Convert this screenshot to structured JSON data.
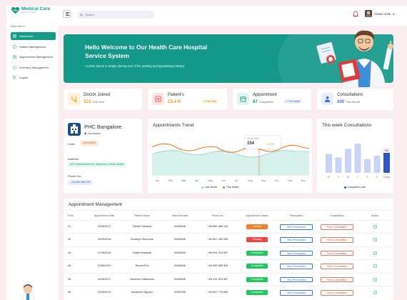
{
  "app": {
    "name": "Medical Care",
    "tagline": "HEALTH CARE"
  },
  "sidebar": {
    "menu_label": "Main Menu",
    "items": [
      {
        "label": "Dashboard",
        "icon": "dashboard-icon",
        "active": true
      },
      {
        "label": "Patient Management",
        "icon": "patient-icon"
      },
      {
        "label": "Appointment Management",
        "icon": "calendar-icon"
      },
      {
        "label": "Inventory Management",
        "icon": "inventory-icon"
      },
      {
        "label": "Logout",
        "icon": "logout-icon"
      }
    ]
  },
  "topbar": {
    "search_placeholder": "Search",
    "user_name": "Anson Jose"
  },
  "hero": {
    "title": "Hello Welcome to Our Health Care Hospital Service System",
    "text": "Lorem Ipsum is simply dummy text of the printing and typesetting industry."
  },
  "stats": [
    {
      "title": "Doctor Joined",
      "value": "323",
      "suffix": "This Year",
      "chip": ""
    },
    {
      "title": "Patient's",
      "value": "23.4 K",
      "suffix": "",
      "chip": "This Year"
    },
    {
      "title": "Appointment",
      "value": "87",
      "suffix": "Completed",
      "chip": "This Month"
    },
    {
      "title": "Consultations",
      "value": "200",
      "suffix": "This Month",
      "chip": "This Month"
    }
  ],
  "phc": {
    "name": "PHC  Bangalore",
    "location": "Karnataka",
    "code_label": "Code:",
    "code": "109453646",
    "address_label": "Address:",
    "address": "2972 Westheimer Rd. Santa Ana, Illinois 85486",
    "phone_label": "Phone No:",
    "phone": "+84 889 988 125"
  },
  "trend": {
    "title": "Appointments Trend",
    "tooltip_date": "25 Jul 2022",
    "tooltip_value": "154",
    "tooltip_change": "+3.4%",
    "legend_last": "Last Month",
    "legend_this": "This Month",
    "months": [
      "Jan",
      "Feb",
      "Mar",
      "Apr",
      "May",
      "Jun",
      "Jul",
      "Aug",
      "Sep",
      "Oct",
      "Nov",
      "Dec"
    ]
  },
  "weekly": {
    "title": "This week Consultations",
    "days": [
      "M",
      "T",
      "W",
      "T",
      "F",
      "S",
      "Today"
    ],
    "values": [
      0.55,
      0.45,
      0.7,
      0.85,
      0.4,
      0.5,
      0.62
    ],
    "tooltip": "154",
    "legend": "Completion rate"
  },
  "table": {
    "title": "Appointment Management",
    "headers": [
      "S.No",
      "Appointment Date",
      "Patient Name",
      "Token Number",
      "Phone No.",
      "Appointment Status",
      "Prescription",
      "Consultation",
      "Action"
    ],
    "rows": [
      {
        "sno": "01.",
        "date": "15/08/2017",
        "name": "Darrell Steward",
        "token": "i0946548",
        "phone": "+84 889 988 125",
        "status": "Arrived",
        "status_color": "#f07f2e"
      },
      {
        "sno": "02.",
        "date": "18/09/2016",
        "name": "Brooklyn Simmons",
        "token": "i0946548",
        "phone": "+84 667 435 265",
        "status": "Pending",
        "status_color": "#ef4444"
      },
      {
        "sno": "03.",
        "date": "07/05/2016",
        "name": "Ralph Edwards",
        "token": "i0946548",
        "phone": "+84 691 213 567",
        "status": "Completed",
        "status_color": "#22c55e"
      },
      {
        "sno": "04.",
        "date": "12/06/2020",
        "name": "Robert Fox",
        "token": "i0946548",
        "phone": "+84 555 655 999",
        "status": "Completed",
        "status_color": "#22c55e"
      },
      {
        "sno": "05.",
        "date": "15/08/2017",
        "name": "Cameron Williamson",
        "token": "i0946538",
        "phone": "+84 416 323 567",
        "status": "Completed",
        "status_color": "#22c55e"
      },
      {
        "sno": "06.",
        "date": "16/08/2013",
        "name": "Savannah Nguyen",
        "token": "i0946538",
        "phone": "+84 667 778 889",
        "status": "Completed",
        "status_color": "#22c55e"
      }
    ],
    "prescription_label": "View Prescription",
    "consultation_label": "Push Consultation"
  },
  "colors": {
    "brand": "#159b8a",
    "accent_orange": "#f07f2e",
    "blue": "#3b6ee0"
  }
}
